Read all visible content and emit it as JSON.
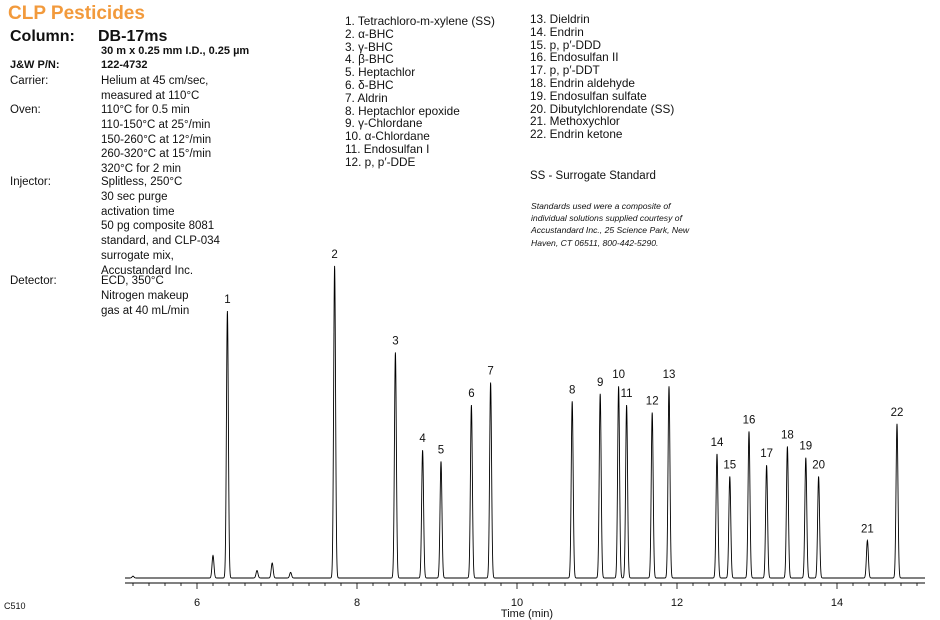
{
  "header": {
    "title": "CLP Pesticides",
    "column_label": "Column:",
    "column_name": "DB-17ms",
    "column_desc": "30 m x 0.25 mm I.D., 0.25 µm",
    "pn_label": "J&W P/N:",
    "pn_value": "122-4732"
  },
  "conditions": [
    {
      "label": "Carrier:",
      "lines": [
        "Helium at 45 cm/sec,",
        "measured at 110°C"
      ]
    },
    {
      "label": "Oven:",
      "lines": [
        "110°C for 0.5 min",
        "110-150°C at 25°/min",
        "150-260°C at 12°/min",
        "260-320°C at 15°/min",
        "320°C for 2 min"
      ]
    },
    {
      "label": "Injector:",
      "lines": [
        "Splitless, 250°C",
        "30 sec purge",
        "activation time",
        "50 pg composite 8081",
        "standard, and CLP-034",
        "surrogate mix,",
        "Accustandard Inc."
      ]
    },
    {
      "label": "Detector:",
      "lines": [
        "ECD, 350°C",
        "Nitrogen makeup",
        "gas at 40 mL/min"
      ]
    }
  ],
  "peaks_col1": [
    "1. Tetrachloro-m-xylene (SS)",
    "2. α-BHC",
    "3. γ-BHC",
    "4. β-BHC",
    "5. Heptachlor",
    "6. δ-BHC",
    "7. Aldrin",
    "8. Heptachlor epoxide",
    "9. γ-Chlordane",
    "10. α-Chlordane",
    "11. Endosulfan I",
    "12. p, p′-DDE"
  ],
  "peaks_col2": [
    "13. Dieldrin",
    "14. Endrin",
    "15. p, p′-DDD",
    "16. Endosulfan II",
    "17. p, p′-DDT",
    "18. Endrin aldehyde",
    "19. Endosulfan sulfate",
    "20. Dibutylchlorendate (SS)",
    "21. Methoxychlor",
    "22. Endrin ketone"
  ],
  "ss_note": "SS - Surrogate Standard",
  "standards_note": [
    "Standards used were a composite of",
    "individual solutions supplied courtesy of",
    "Accustandard Inc., 25 Science Park, New",
    "Haven, CT 06511, 800-442-5290."
  ],
  "figure_code": "C510",
  "chart_data": {
    "type": "line",
    "xlabel": "Time (min)",
    "xlim": [
      5.1,
      15.1
    ],
    "ylim": [
      0,
      100
    ],
    "x_ticks": [
      6,
      8,
      10,
      12,
      14
    ],
    "peaks": [
      {
        "label": "1",
        "rt": 6.38,
        "height": 71
      },
      {
        "label": "2",
        "rt": 7.72,
        "height": 83
      },
      {
        "label": "3",
        "rt": 8.48,
        "height": 60
      },
      {
        "label": "4",
        "rt": 8.82,
        "height": 34
      },
      {
        "label": "5",
        "rt": 9.05,
        "height": 31
      },
      {
        "label": "6",
        "rt": 9.43,
        "height": 46
      },
      {
        "label": "7",
        "rt": 9.67,
        "height": 52
      },
      {
        "label": "8",
        "rt": 10.69,
        "height": 47
      },
      {
        "label": "9",
        "rt": 11.04,
        "height": 49
      },
      {
        "label": "10",
        "rt": 11.27,
        "height": 51
      },
      {
        "label": "11",
        "rt": 11.37,
        "height": 46
      },
      {
        "label": "12",
        "rt": 11.69,
        "height": 44
      },
      {
        "label": "13",
        "rt": 11.9,
        "height": 51
      },
      {
        "label": "14",
        "rt": 12.5,
        "height": 33
      },
      {
        "label": "15",
        "rt": 12.66,
        "height": 27
      },
      {
        "label": "16",
        "rt": 12.9,
        "height": 39
      },
      {
        "label": "17",
        "rt": 13.12,
        "height": 30
      },
      {
        "label": "18",
        "rt": 13.38,
        "height": 35
      },
      {
        "label": "19",
        "rt": 13.61,
        "height": 32
      },
      {
        "label": "20",
        "rt": 13.77,
        "height": 27
      },
      {
        "label": "21",
        "rt": 14.38,
        "height": 10
      },
      {
        "label": "22",
        "rt": 14.75,
        "height": 41
      }
    ],
    "minor_peaks": [
      {
        "rt": 5.2,
        "height": 0.5
      },
      {
        "rt": 6.2,
        "height": 6
      },
      {
        "rt": 6.75,
        "height": 2
      },
      {
        "rt": 6.94,
        "height": 4
      },
      {
        "rt": 7.17,
        "height": 1.5
      }
    ]
  }
}
